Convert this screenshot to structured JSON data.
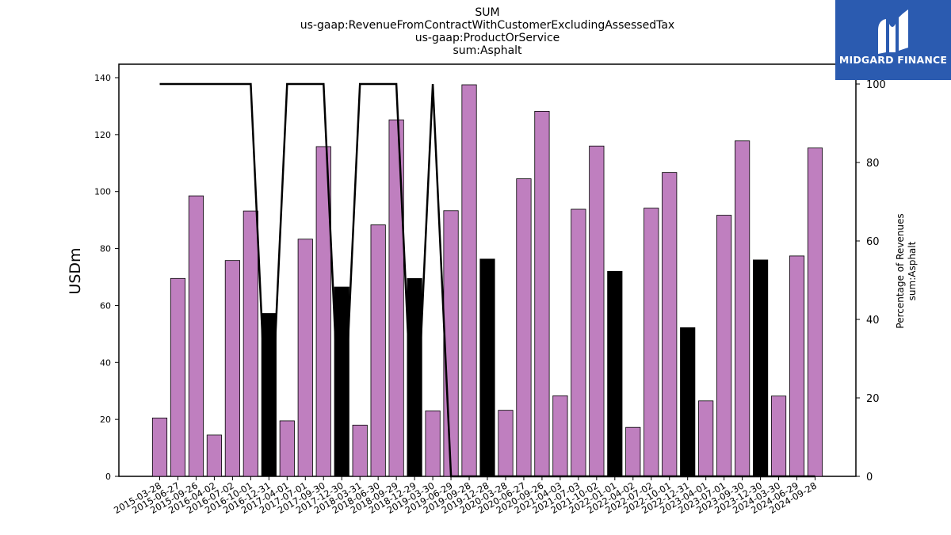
{
  "title_lines": [
    "SUM",
    "us-gaap:RevenueFromContractWithCustomerExcludingAssessedTax",
    "us-gaap:ProductOrService",
    "sum:Asphalt"
  ],
  "logo": {
    "text": "MIDGARD FINANCE",
    "bg_color": "#2b5bb0"
  },
  "chart_data": {
    "type": "bar",
    "ylabel": "USDm",
    "ylabel_right": [
      "Percentage of Revenues",
      "sum:Asphalt"
    ],
    "ylim": [
      0,
      145
    ],
    "yticks": [
      0,
      20,
      40,
      60,
      80,
      100,
      120,
      140
    ],
    "ylim_right": [
      0,
      100
    ],
    "yticks_right": [
      0,
      20,
      40,
      60,
      80,
      100
    ],
    "colors": {
      "bar": "#bf7fbf",
      "bar_highlight": "#000000",
      "line": "#000000"
    },
    "categories": [
      "2015-03-28",
      "2015-06-27",
      "2015-09-26",
      "2016-04-02",
      "2016-07-02",
      "2016-10-01",
      "2016-12-31",
      "2017-04-01",
      "2017-07-01",
      "2017-09-30",
      "2017-12-30",
      "2018-03-31",
      "2018-06-30",
      "2018-09-29",
      "2018-12-29",
      "2019-03-30",
      "2019-06-29",
      "2019-09-28",
      "2019-12-28",
      "2020-03-28",
      "2020-06-27",
      "2020-09-26",
      "2021-04-03",
      "2021-07-03",
      "2021-10-02",
      "2022-01-01",
      "2022-04-02",
      "2022-07-02",
      "2022-10-01",
      "2022-12-31",
      "2023-04-01",
      "2023-07-01",
      "2023-09-30",
      "2023-12-30",
      "2024-03-30",
      "2024-06-29",
      "2024-09-28"
    ],
    "series": [
      {
        "values": [
          20.5,
          69.5,
          98.5,
          14.5,
          75.8,
          93.2,
          57.2,
          19.5,
          83.3,
          115.8,
          66.5,
          18.0,
          88.3,
          125.2,
          69.5,
          23.0,
          93.3,
          137.5,
          76.3,
          23.2,
          104.5,
          128.2,
          28.3,
          93.8,
          116.0,
          72.0,
          17.2,
          94.2,
          106.7,
          52.2,
          26.5,
          91.7,
          117.8,
          76.0,
          28.2,
          77.4,
          115.3
        ],
        "highlight": [
          false,
          false,
          false,
          false,
          false,
          false,
          true,
          false,
          false,
          false,
          true,
          false,
          false,
          false,
          true,
          false,
          false,
          false,
          true,
          false,
          false,
          false,
          false,
          false,
          false,
          true,
          false,
          false,
          false,
          true,
          false,
          false,
          false,
          true,
          false,
          false,
          false
        ]
      },
      {
        "axis": "right",
        "values": [
          100,
          100,
          100,
          100,
          100,
          100,
          0,
          100,
          100,
          100,
          0,
          100,
          100,
          100,
          0,
          100,
          0,
          0,
          0,
          0,
          0,
          0,
          0,
          0,
          0,
          0,
          0,
          0,
          0,
          0,
          0,
          0,
          0,
          0,
          0,
          0,
          0
        ]
      }
    ]
  }
}
